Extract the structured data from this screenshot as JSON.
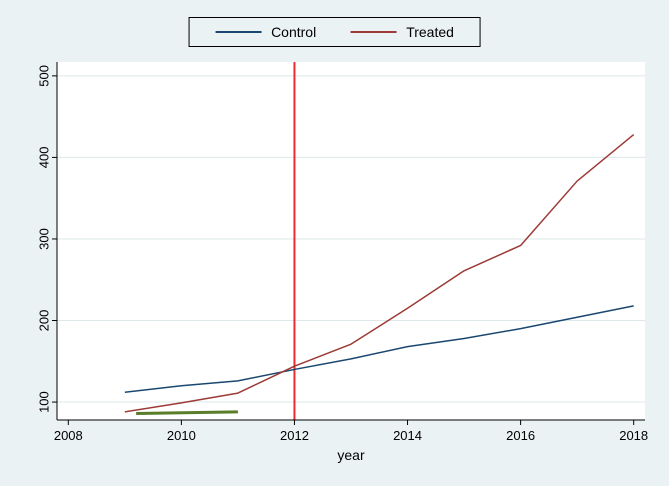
{
  "figure": {
    "background": "#eaf2f3",
    "plot_background": "#ffffff",
    "gridline_color": "#dce8ea",
    "axis_color": "#000000"
  },
  "legend": {
    "position": "top-center",
    "items": [
      {
        "label": "Control",
        "color": "#1a476f"
      },
      {
        "label": "Treated",
        "color": "#9c3a36"
      }
    ]
  },
  "chart_data": {
    "type": "line",
    "title": "",
    "xlabel": "year",
    "ylabel": "",
    "xlim": [
      2007.8,
      2018.2
    ],
    "ylim": [
      78,
      517
    ],
    "xticks": [
      2008,
      2010,
      2012,
      2014,
      2016,
      2018
    ],
    "yticks": [
      100,
      200,
      300,
      400,
      500
    ],
    "grid": true,
    "series": [
      {
        "name": "Control",
        "color": "#1a476f",
        "width": 1.5,
        "points": [
          [
            2009,
            112
          ],
          [
            2010,
            120
          ],
          [
            2011,
            126
          ],
          [
            2012,
            140
          ],
          [
            2013,
            153
          ],
          [
            2014,
            168
          ],
          [
            2015,
            178
          ],
          [
            2016,
            190
          ],
          [
            2017,
            204
          ],
          [
            2018,
            218
          ]
        ]
      },
      {
        "name": "Treated",
        "color": "#9c3a36",
        "width": 1.5,
        "points": [
          [
            2009,
            88
          ],
          [
            2010,
            99
          ],
          [
            2011,
            111
          ],
          [
            2012,
            144
          ],
          [
            2013,
            171
          ],
          [
            2014,
            215
          ],
          [
            2015,
            261
          ],
          [
            2016,
            292
          ],
          [
            2017,
            371
          ],
          [
            2018,
            428
          ]
        ]
      },
      {
        "name": "short-green-segment",
        "color": "#5a7d29",
        "width": 3,
        "points": [
          [
            2009.2,
            86
          ],
          [
            2011,
            88
          ]
        ]
      }
    ],
    "vline": {
      "x": 2012,
      "color": "#f02b2b",
      "width": 2
    }
  }
}
